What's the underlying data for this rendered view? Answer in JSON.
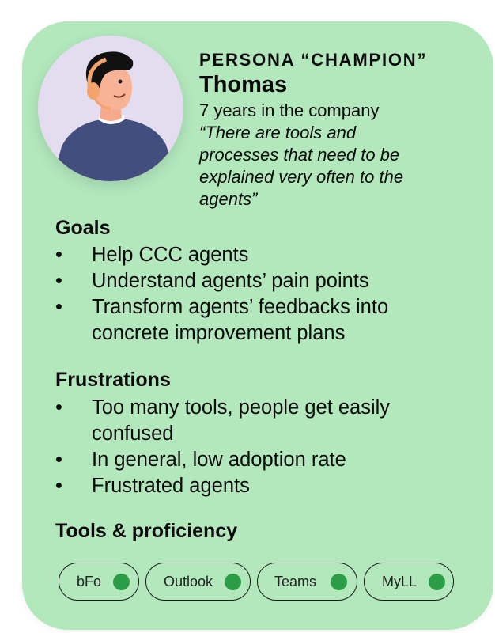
{
  "persona": {
    "label": "PERSONA “CHAMPION”",
    "name": "Thomas",
    "tenure": "7 years in the company",
    "quote_lines": [
      "“There are tools and",
      "processes that need to be",
      "explained very often to the",
      "agents”"
    ]
  },
  "goals": {
    "title": "Goals",
    "bullet": "•",
    "items": [
      "Help CCC agents",
      "Understand agents’ pain points",
      "Transform agents’ feedbacks into concrete improvement plans"
    ]
  },
  "frustrations": {
    "title": "Frustrations",
    "bullet": "•",
    "items": [
      "Too many tools, people get easily confused",
      "In general, low adoption rate",
      "Frustrated agents"
    ]
  },
  "tools": {
    "title": "Tools & proficiency",
    "items": [
      {
        "label": "bFo",
        "status_color": "#2a9d46"
      },
      {
        "label": "Outlook",
        "status_color": "#2a9d46"
      },
      {
        "label": "Teams",
        "status_color": "#2a9d46"
      },
      {
        "label": "MyLL",
        "status_color": "#2a9d46"
      }
    ]
  },
  "colors": {
    "card_background": "#b3e8bd",
    "avatar_background": "#e4dcef",
    "status_green": "#2a9d46"
  }
}
